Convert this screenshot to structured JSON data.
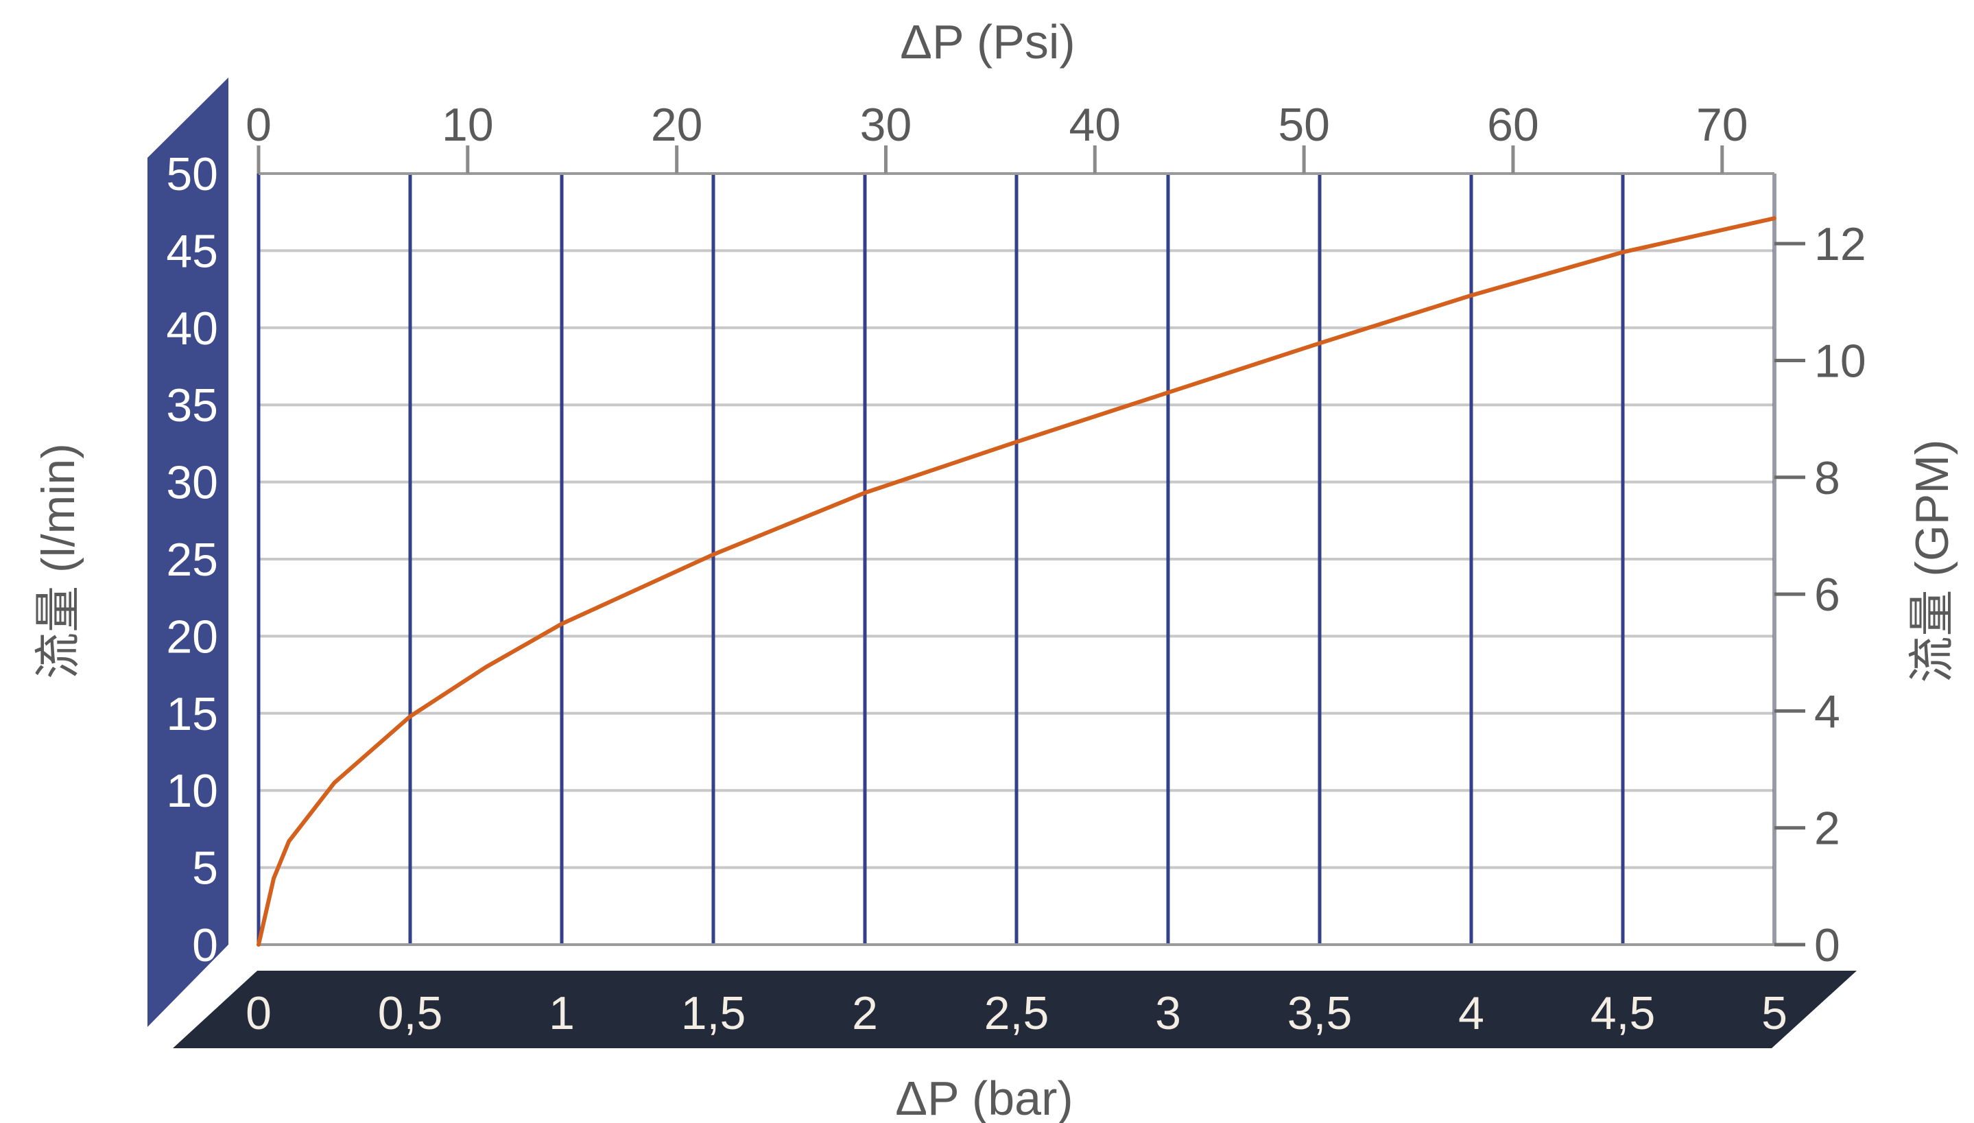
{
  "chart_data": {
    "type": "line",
    "title": "",
    "x_top": {
      "label": "ΔP (Psi)",
      "ticks": [
        "0",
        "10",
        "20",
        "30",
        "40",
        "50",
        "60",
        "70"
      ],
      "range": [
        0,
        72.5
      ]
    },
    "x_bottom": {
      "label": "ΔP (bar)",
      "ticks": [
        "0",
        "0,5",
        "1",
        "1,5",
        "2",
        "2,5",
        "3",
        "3,5",
        "4",
        "4,5",
        "5"
      ],
      "range": [
        0,
        5
      ]
    },
    "y_left": {
      "label": "流量 (l/min)",
      "ticks": [
        "0",
        "5",
        "10",
        "15",
        "20",
        "25",
        "30",
        "35",
        "40",
        "45",
        "50"
      ],
      "range": [
        0,
        50
      ]
    },
    "y_right": {
      "label": "流量 (GPM)",
      "ticks": [
        "0",
        "2",
        "4",
        "6",
        "8",
        "10",
        "12"
      ],
      "range": [
        0,
        13.2
      ]
    },
    "grid": true,
    "series": [
      {
        "color": "#d4601e",
        "x_unit": "bar",
        "y_unit": "l/min",
        "points": [
          [
            0,
            0
          ],
          [
            0.05,
            4.3
          ],
          [
            0.1,
            6.7
          ],
          [
            0.25,
            10.5
          ],
          [
            0.5,
            14.8
          ],
          [
            0.75,
            18.0
          ],
          [
            1,
            20.8
          ],
          [
            1.5,
            25.3
          ],
          [
            2,
            29.3
          ],
          [
            2.5,
            32.6
          ],
          [
            3,
            35.8
          ],
          [
            3.5,
            39.0
          ],
          [
            4,
            42.1
          ],
          [
            4.5,
            44.9
          ],
          [
            5,
            47.1
          ]
        ]
      }
    ],
    "colors": {
      "left_panel": "#3d4b8c",
      "bottom_panel": "#232a3a",
      "vertical_grid": "#33418a",
      "horizontal_grid": "#c8c8c8",
      "axis_text": "#5a5a5a",
      "curve": "#d4601e"
    }
  }
}
